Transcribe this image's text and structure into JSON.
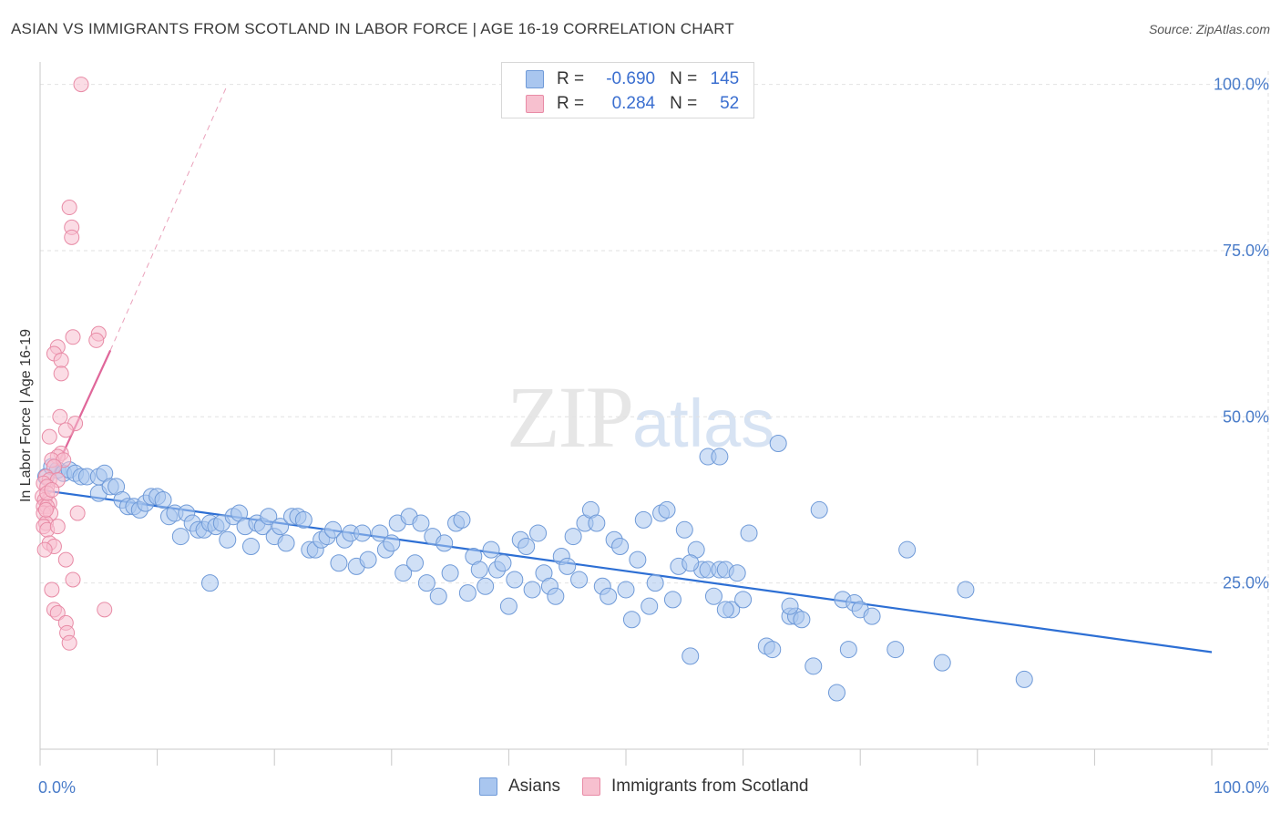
{
  "header": {
    "title": "ASIAN VS IMMIGRANTS FROM SCOTLAND IN LABOR FORCE | AGE 16-19 CORRELATION CHART",
    "source": "Source: ZipAtlas.com"
  },
  "watermark": {
    "zip": "ZIP",
    "atlas": "atlas"
  },
  "legend": {
    "r_label": "R =",
    "n_label": "N =",
    "rows": [
      {
        "r": "-0.690",
        "n": "145",
        "color": "#a9c6ef",
        "border": "#6f9ad8"
      },
      {
        "r": "0.284",
        "n": "52",
        "color": "#f7c0cf",
        "border": "#e88ba6"
      }
    ]
  },
  "bottom_legend": [
    {
      "label": "Asians",
      "color": "#a9c6ef",
      "border": "#6f9ad8"
    },
    {
      "label": "Immigrants from Scotland",
      "color": "#f7c0cf",
      "border": "#e88ba6"
    }
  ],
  "chart_data": {
    "type": "scatter",
    "title": "ASIAN VS IMMIGRANTS FROM SCOTLAND IN LABOR FORCE | AGE 16-19 CORRELATION CHART",
    "xlabel": "",
    "ylabel": "In Labor Force | Age 16-19",
    "xlim": [
      0,
      100
    ],
    "ylim": [
      0,
      102
    ],
    "x_tick_labels": [
      "0.0%",
      "100.0%"
    ],
    "y_tick_labels": [
      "25.0%",
      "50.0%",
      "75.0%",
      "100.0%"
    ],
    "y_ticks": [
      25,
      50,
      75,
      100
    ],
    "grid": true,
    "legend_position": "top-center",
    "colors": {
      "asians_fill": "#a9c6ef",
      "asians_stroke": "#6f9ad8",
      "asians_line": "#2d6fd4",
      "scot_fill": "#f7c0cf",
      "scot_stroke": "#e88ba6",
      "scot_line": "#e0679a"
    },
    "series": [
      {
        "name": "Asians",
        "trend": {
          "x": [
            0,
            100
          ],
          "y": [
            39,
            14.6
          ]
        },
        "points": [
          [
            0.5,
            41
          ],
          [
            1.0,
            42.5
          ],
          [
            1.5,
            42
          ],
          [
            2.0,
            41.5
          ],
          [
            2.5,
            42
          ],
          [
            3.0,
            41.5
          ],
          [
            3.5,
            41
          ],
          [
            4.0,
            41
          ],
          [
            5.0,
            41
          ],
          [
            5.5,
            41.5
          ],
          [
            5.0,
            38.5
          ],
          [
            6.0,
            39.5
          ],
          [
            6.5,
            39.5
          ],
          [
            7.0,
            37.5
          ],
          [
            7.5,
            36.5
          ],
          [
            8.0,
            36.5
          ],
          [
            8.5,
            36
          ],
          [
            9.0,
            37
          ],
          [
            9.5,
            38
          ],
          [
            10.0,
            38
          ],
          [
            10.5,
            37.5
          ],
          [
            11.0,
            35
          ],
          [
            11.5,
            35.5
          ],
          [
            12.0,
            32
          ],
          [
            12.5,
            35.5
          ],
          [
            13.0,
            34
          ],
          [
            13.5,
            33
          ],
          [
            14.0,
            33
          ],
          [
            14.5,
            34
          ],
          [
            15.0,
            33.5
          ],
          [
            15.5,
            34
          ],
          [
            16.0,
            31.5
          ],
          [
            16.5,
            35
          ],
          [
            17.0,
            35.5
          ],
          [
            17.5,
            33.5
          ],
          [
            18.0,
            30.5
          ],
          [
            18.5,
            34
          ],
          [
            19.0,
            33.5
          ],
          [
            19.5,
            35
          ],
          [
            20.0,
            32
          ],
          [
            20.5,
            33.5
          ],
          [
            21.0,
            31
          ],
          [
            21.5,
            35
          ],
          [
            22.0,
            35
          ],
          [
            22.5,
            34.5
          ],
          [
            23.0,
            30
          ],
          [
            23.5,
            30
          ],
          [
            24.0,
            31.5
          ],
          [
            24.5,
            32
          ],
          [
            25.0,
            33
          ],
          [
            25.5,
            28
          ],
          [
            26.0,
            31.5
          ],
          [
            26.5,
            32.5
          ],
          [
            27.0,
            27.5
          ],
          [
            27.5,
            32.5
          ],
          [
            28.0,
            28.5
          ],
          [
            29.0,
            32.5
          ],
          [
            29.5,
            30
          ],
          [
            30.0,
            31
          ],
          [
            30.5,
            34
          ],
          [
            31.0,
            26.5
          ],
          [
            31.5,
            35
          ],
          [
            32.0,
            28
          ],
          [
            32.5,
            34
          ],
          [
            33.0,
            25
          ],
          [
            33.5,
            32
          ],
          [
            34.0,
            23
          ],
          [
            34.5,
            31
          ],
          [
            35.0,
            26.5
          ],
          [
            35.5,
            34
          ],
          [
            36.0,
            34.5
          ],
          [
            36.5,
            23.5
          ],
          [
            37.0,
            29
          ],
          [
            37.5,
            27
          ],
          [
            38.0,
            24.5
          ],
          [
            38.5,
            30
          ],
          [
            39.0,
            27
          ],
          [
            39.5,
            28
          ],
          [
            40.0,
            21.5
          ],
          [
            40.5,
            25.5
          ],
          [
            41.0,
            31.5
          ],
          [
            41.5,
            30.5
          ],
          [
            42.0,
            24
          ],
          [
            42.5,
            32.5
          ],
          [
            43.0,
            26.5
          ],
          [
            43.5,
            24.5
          ],
          [
            44.0,
            23
          ],
          [
            44.5,
            29
          ],
          [
            45.0,
            27.5
          ],
          [
            45.5,
            32
          ],
          [
            46.0,
            25.5
          ],
          [
            46.5,
            34
          ],
          [
            47.0,
            36
          ],
          [
            47.5,
            34
          ],
          [
            48.0,
            24.5
          ],
          [
            48.5,
            23
          ],
          [
            49.0,
            31.5
          ],
          [
            49.5,
            30.5
          ],
          [
            50.0,
            24
          ],
          [
            50.5,
            19.5
          ],
          [
            51.0,
            28.5
          ],
          [
            51.5,
            34.5
          ],
          [
            52.0,
            21.5
          ],
          [
            52.5,
            25
          ],
          [
            53.0,
            35.5
          ],
          [
            53.5,
            36
          ],
          [
            54.0,
            22.5
          ],
          [
            54.5,
            27.5
          ],
          [
            55.0,
            33
          ],
          [
            55.5,
            14
          ],
          [
            56.0,
            30
          ],
          [
            56.5,
            27
          ],
          [
            57.0,
            27
          ],
          [
            57.5,
            23
          ],
          [
            58.0,
            27
          ],
          [
            58.5,
            27
          ],
          [
            59.0,
            21
          ],
          [
            59.5,
            26.5
          ],
          [
            60.0,
            22.5
          ],
          [
            60.5,
            32.5
          ],
          [
            62.0,
            15.5
          ],
          [
            62.5,
            15
          ],
          [
            64.0,
            20
          ],
          [
            64.5,
            20
          ],
          [
            65.0,
            19.5
          ],
          [
            66.0,
            12.5
          ],
          [
            66.5,
            36
          ],
          [
            68.0,
            8.5
          ],
          [
            68.5,
            22.5
          ],
          [
            69.0,
            15
          ],
          [
            69.5,
            22
          ],
          [
            70.0,
            21
          ],
          [
            71.0,
            20
          ],
          [
            73.0,
            15
          ],
          [
            74.0,
            30
          ],
          [
            77.0,
            13
          ],
          [
            79.0,
            24
          ],
          [
            84.0,
            10.5
          ],
          [
            57.0,
            44
          ],
          [
            58.0,
            44
          ],
          [
            63.0,
            46
          ],
          [
            14.5,
            25
          ],
          [
            55.5,
            28
          ],
          [
            58.5,
            21
          ],
          [
            64.0,
            21.5
          ]
        ]
      },
      {
        "name": "Immigrants from Scotland",
        "trend": {
          "x": [
            0,
            6
          ],
          "y": [
            37,
            60
          ]
        },
        "trend_extension": {
          "x": [
            6,
            16
          ],
          "y": [
            60,
            100
          ]
        },
        "points": [
          [
            3.5,
            100
          ],
          [
            2.5,
            81.5
          ],
          [
            2.7,
            78.5
          ],
          [
            2.7,
            77
          ],
          [
            5.0,
            62.5
          ],
          [
            4.8,
            61.5
          ],
          [
            2.8,
            62
          ],
          [
            1.5,
            60.5
          ],
          [
            1.2,
            59.5
          ],
          [
            1.8,
            58.5
          ],
          [
            1.8,
            56.5
          ],
          [
            1.7,
            50
          ],
          [
            3.0,
            49
          ],
          [
            2.2,
            48
          ],
          [
            0.8,
            47
          ],
          [
            1.8,
            44.5
          ],
          [
            1.5,
            44
          ],
          [
            1.0,
            43.5
          ],
          [
            2.0,
            43.5
          ],
          [
            1.2,
            42.5
          ],
          [
            0.5,
            41
          ],
          [
            0.8,
            40.5
          ],
          [
            0.3,
            40
          ],
          [
            1.5,
            40.5
          ],
          [
            0.6,
            39.5
          ],
          [
            0.2,
            38
          ],
          [
            0.4,
            37.5
          ],
          [
            0.8,
            37
          ],
          [
            0.3,
            36.5
          ],
          [
            0.6,
            36.5
          ],
          [
            0.3,
            35.5
          ],
          [
            0.9,
            35.5
          ],
          [
            0.5,
            34
          ],
          [
            0.3,
            33.5
          ],
          [
            0.6,
            33
          ],
          [
            1.5,
            33.5
          ],
          [
            3.2,
            35.5
          ],
          [
            0.8,
            31
          ],
          [
            1.2,
            30.5
          ],
          [
            0.4,
            30
          ],
          [
            2.2,
            28.5
          ],
          [
            2.8,
            25.5
          ],
          [
            1.0,
            24
          ],
          [
            1.2,
            21
          ],
          [
            1.5,
            20.5
          ],
          [
            5.5,
            21
          ],
          [
            2.2,
            19
          ],
          [
            2.3,
            17.5
          ],
          [
            2.5,
            16
          ],
          [
            0.6,
            38.5
          ],
          [
            1.0,
            39
          ],
          [
            0.5,
            36
          ]
        ]
      }
    ]
  }
}
